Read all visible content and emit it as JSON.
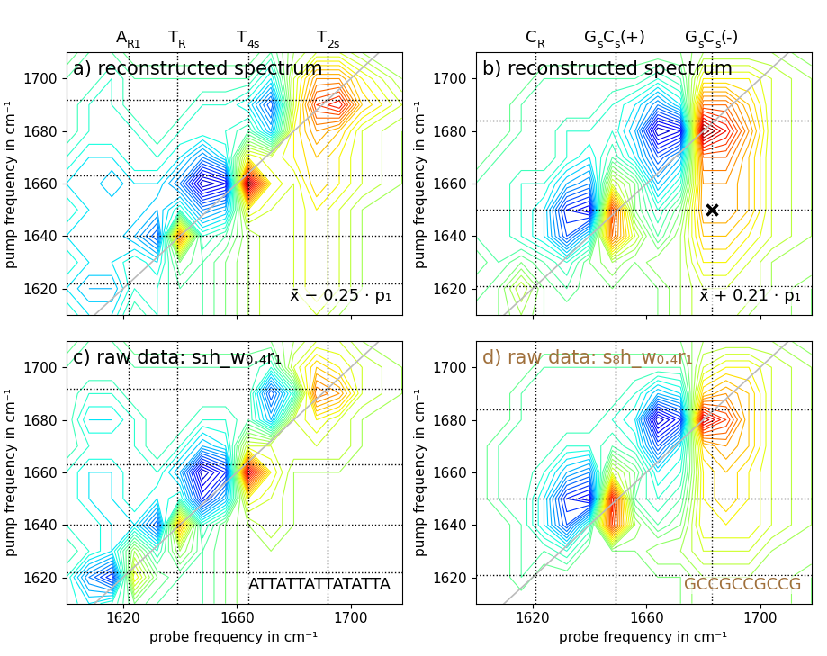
{
  "chart_data": [
    {
      "type": "contour",
      "title": "a) reconstructed spectrum",
      "annotation": "x̄ − 0.25 · p₁",
      "color": "#000000",
      "y_label": "pump frequency in cm⁻¹",
      "tick_labels": "y",
      "xlim": [
        1600,
        1718
      ],
      "ylim": [
        1610,
        1710
      ],
      "xticks": [
        1620,
        1660,
        1700
      ],
      "yticks": [
        1620,
        1640,
        1660,
        1680,
        1700
      ],
      "zlim": [
        -10,
        10
      ],
      "bands": [
        {
          "x": 1622,
          "label": [
            [
              "A",
              false
            ],
            [
              "R1",
              true
            ]
          ]
        },
        {
          "x": 1639,
          "label": [
            [
              "T",
              false
            ],
            [
              "R",
              true
            ]
          ]
        },
        {
          "x": 1664,
          "label": [
            [
              "T",
              false
            ],
            [
              "4s",
              true
            ]
          ]
        },
        {
          "x": 1692,
          "label": [
            [
              "T",
              false
            ],
            [
              "2s",
              true
            ]
          ]
        }
      ],
      "vlines": [
        1622,
        1639,
        1664,
        1692
      ],
      "hlines": [
        1622,
        1640,
        1663,
        1692
      ],
      "x": [
        1600,
        1608,
        1616,
        1624,
        1632,
        1640,
        1648,
        1656,
        1664,
        1672,
        1680,
        1688,
        1696,
        1704,
        1718
      ],
      "y": [
        1610,
        1620,
        1630,
        1640,
        1650,
        1660,
        1670,
        1680,
        1690,
        1700,
        1710
      ],
      "z": [
        [
          -2,
          -3,
          -3,
          -1,
          -2,
          -1,
          -1,
          0,
          1,
          2,
          2,
          2,
          1,
          1,
          1
        ],
        [
          -3,
          -4,
          -4,
          -2,
          -2,
          -1,
          -1,
          0,
          1,
          2,
          2,
          3,
          2,
          1,
          1
        ],
        [
          -2,
          -3,
          -3,
          -2,
          -3,
          0,
          -1,
          0,
          1,
          2,
          2,
          3,
          2,
          1,
          1
        ],
        [
          -3,
          -3,
          -3,
          -4,
          -6,
          6,
          -2,
          -1,
          1,
          2,
          2,
          3,
          2,
          1,
          1
        ],
        [
          -2,
          -3,
          -3,
          -3,
          -4,
          -2,
          -5,
          -4,
          3,
          2,
          2,
          3,
          2,
          1,
          1
        ],
        [
          -3,
          -3,
          -4,
          -3,
          -3,
          -5,
          -9,
          -8,
          10,
          3,
          2,
          4,
          3,
          2,
          1
        ],
        [
          -2,
          -3,
          -3,
          -2,
          -2,
          -3,
          -5,
          -3,
          3,
          2,
          3,
          4,
          3,
          2,
          1
        ],
        [
          -1,
          -2,
          -2,
          -2,
          -1,
          -2,
          -2,
          -2,
          -1,
          -4,
          3,
          5,
          4,
          2,
          1
        ],
        [
          -1,
          -2,
          -2,
          -1,
          -1,
          -1,
          -2,
          -2,
          -3,
          -6,
          2,
          7,
          8,
          4,
          2
        ],
        [
          -1,
          -1,
          -2,
          -1,
          -1,
          -1,
          -1,
          -1,
          -1,
          -3,
          2,
          5,
          5,
          3,
          1
        ],
        [
          0,
          -1,
          -1,
          0,
          0,
          0,
          0,
          0,
          0,
          -1,
          1,
          2,
          2,
          1,
          1
        ]
      ]
    },
    {
      "type": "contour",
      "title": "b) reconstructed spectrum",
      "annotation": "x̄ + 0.21 · p₁",
      "color": "#000000",
      "y_label": "pump frequency in cm⁻¹",
      "tick_labels": "y",
      "xlim": [
        1600,
        1718
      ],
      "ylim": [
        1610,
        1710
      ],
      "xticks": [
        1620,
        1660,
        1700
      ],
      "yticks": [
        1620,
        1640,
        1660,
        1680,
        1700
      ],
      "zlim": [
        -10,
        10
      ],
      "bands": [
        {
          "x": 1621,
          "label": [
            [
              "C",
              false
            ],
            [
              "R",
              true
            ]
          ]
        },
        {
          "x": 1649,
          "label": [
            [
              "G",
              false
            ],
            [
              "s",
              true
            ],
            [
              "C",
              false
            ],
            [
              "s",
              true
            ],
            [
              "(+)",
              false
            ]
          ]
        },
        {
          "x": 1683,
          "label": [
            [
              "G",
              false
            ],
            [
              "s",
              true
            ],
            [
              "C",
              false
            ],
            [
              "s",
              true
            ],
            [
              "(-)",
              false
            ]
          ]
        }
      ],
      "vlines": [
        1621,
        1649,
        1683
      ],
      "hlines": [
        1621,
        1650,
        1684
      ],
      "markers": [
        {
          "x": 1683,
          "y": 1650,
          "marker": "x"
        }
      ],
      "x": [
        1600,
        1608,
        1616,
        1624,
        1632,
        1640,
        1648,
        1656,
        1664,
        1672,
        1680,
        1688,
        1696,
        1704,
        1718
      ],
      "y": [
        1610,
        1620,
        1630,
        1640,
        1650,
        1660,
        1670,
        1680,
        1690,
        1700,
        1710
      ],
      "z": [
        [
          0,
          0,
          1,
          0,
          0,
          0,
          0,
          0,
          0,
          1,
          2,
          2,
          1,
          1,
          0
        ],
        [
          -1,
          0,
          2,
          0,
          -1,
          0,
          0,
          0,
          0,
          1,
          2,
          2,
          2,
          1,
          0
        ],
        [
          0,
          -1,
          0,
          -1,
          -2,
          0,
          1,
          0,
          1,
          1,
          3,
          3,
          2,
          1,
          1
        ],
        [
          -1,
          -1,
          -2,
          -3,
          -6,
          -3,
          6,
          2,
          -1,
          1,
          4,
          4,
          3,
          2,
          1
        ],
        [
          -1,
          -1,
          -2,
          -3,
          -7,
          -8,
          7,
          0,
          -2,
          0,
          5,
          5,
          4,
          2,
          1
        ],
        [
          -1,
          -1,
          -2,
          -2,
          -4,
          -5,
          2,
          0,
          -4,
          -2,
          5,
          5,
          4,
          2,
          1
        ],
        [
          0,
          -1,
          -1,
          -1,
          -2,
          -3,
          -1,
          -3,
          -6,
          -4,
          6,
          6,
          4,
          2,
          1
        ],
        [
          0,
          0,
          -1,
          -1,
          -2,
          -2,
          -2,
          -4,
          -9,
          -8,
          10,
          8,
          5,
          2,
          1
        ],
        [
          0,
          0,
          -1,
          -1,
          -1,
          -1,
          -2,
          -3,
          -5,
          -3,
          6,
          6,
          4,
          2,
          1
        ],
        [
          0,
          0,
          0,
          -1,
          -1,
          -1,
          -1,
          -1,
          -2,
          -1,
          3,
          3,
          3,
          2,
          1
        ],
        [
          0,
          0,
          0,
          0,
          0,
          0,
          0,
          0,
          0,
          0,
          1,
          1,
          1,
          1,
          0
        ]
      ]
    },
    {
      "type": "contour",
      "title": "c) raw data: s₁h_w₀.₄r₁",
      "annotation": "ATTATTATTATATTA",
      "color": "#000000",
      "x_label": "probe frequency in cm⁻¹",
      "y_label": "pump frequency in cm⁻¹",
      "xlim": [
        1600,
        1718
      ],
      "ylim": [
        1610,
        1710
      ],
      "xticks": [
        1620,
        1660,
        1700
      ],
      "yticks": [
        1620,
        1640,
        1660,
        1680,
        1700
      ],
      "zlim": [
        -10,
        10
      ],
      "vlines": [
        1622,
        1639,
        1664,
        1692
      ],
      "hlines": [
        1622,
        1640,
        1663,
        1692
      ],
      "x": [
        1600,
        1608,
        1616,
        1624,
        1632,
        1640,
        1648,
        1656,
        1664,
        1672,
        1680,
        1688,
        1696,
        1704,
        1718
      ],
      "y": [
        1610,
        1620,
        1630,
        1640,
        1650,
        1660,
        1670,
        1680,
        1690,
        1700,
        1710
      ],
      "z": [
        [
          -2,
          -3,
          -2,
          0,
          -1,
          -1,
          -1,
          0,
          1,
          1,
          1,
          1,
          1,
          1,
          1
        ],
        [
          -2,
          -5,
          -7,
          3,
          0,
          -1,
          -1,
          0,
          1,
          1,
          1,
          1,
          1,
          1,
          1
        ],
        [
          -1,
          -2,
          -3,
          1,
          -2,
          1,
          -1,
          0,
          1,
          1,
          1,
          1,
          1,
          1,
          1
        ],
        [
          -2,
          -2,
          -3,
          -3,
          -6,
          5,
          -2,
          0,
          1,
          2,
          1,
          1,
          1,
          1,
          1
        ],
        [
          -2,
          -3,
          -3,
          -2,
          -3,
          -2,
          -7,
          -4,
          3,
          2,
          1,
          1,
          1,
          1,
          1
        ],
        [
          -2,
          -3,
          -3,
          -2,
          -2,
          -4,
          -9,
          -7,
          9,
          3,
          1,
          1,
          1,
          1,
          1
        ],
        [
          -1,
          -2,
          -2,
          -2,
          -1,
          -2,
          -4,
          -3,
          2,
          2,
          2,
          2,
          2,
          1,
          1
        ],
        [
          -1,
          -3,
          -3,
          -2,
          -1,
          -1,
          -2,
          -2,
          -1,
          -4,
          2,
          3,
          2,
          1,
          1
        ],
        [
          -1,
          -2,
          -2,
          -1,
          -1,
          -1,
          -1,
          -1,
          -1,
          -6,
          -2,
          6,
          5,
          2,
          1
        ],
        [
          -1,
          -1,
          -1,
          -1,
          -1,
          -1,
          -1,
          -1,
          -1,
          -2,
          2,
          4,
          3,
          2,
          1
        ],
        [
          0,
          -1,
          -1,
          0,
          0,
          0,
          0,
          0,
          0,
          0,
          1,
          2,
          2,
          1,
          1
        ]
      ]
    },
    {
      "type": "contour",
      "title": "d) raw data: s₈h_w₀.₄r₁",
      "annotation": "GCCGCCGCCG",
      "color": "#a0703c",
      "x_label": "probe frequency in cm⁻¹",
      "y_label": "pump frequency in cm⁻¹",
      "xlim": [
        1600,
        1718
      ],
      "ylim": [
        1610,
        1710
      ],
      "xticks": [
        1620,
        1660,
        1700
      ],
      "yticks": [
        1620,
        1640,
        1660,
        1680,
        1700
      ],
      "zlim": [
        -10,
        10
      ],
      "vlines": [
        1621,
        1649,
        1683
      ],
      "hlines": [
        1621,
        1650,
        1684
      ],
      "x": [
        1600,
        1608,
        1616,
        1624,
        1632,
        1640,
        1648,
        1656,
        1664,
        1672,
        1680,
        1688,
        1696,
        1704,
        1718
      ],
      "y": [
        1610,
        1620,
        1630,
        1640,
        1650,
        1660,
        1670,
        1680,
        1690,
        1700,
        1710
      ],
      "z": [
        [
          0,
          0,
          0,
          0,
          0,
          0,
          0,
          0,
          0,
          0,
          1,
          1,
          1,
          1,
          0
        ],
        [
          0,
          0,
          -1,
          0,
          0,
          0,
          0,
          0,
          0,
          0,
          1,
          1,
          1,
          1,
          0
        ],
        [
          0,
          0,
          -1,
          -1,
          -2,
          0,
          0,
          0,
          1,
          1,
          2,
          2,
          2,
          1,
          1
        ],
        [
          0,
          0,
          -1,
          -3,
          -6,
          -2,
          7,
          1,
          -1,
          0,
          3,
          3,
          3,
          2,
          1
        ],
        [
          0,
          -1,
          -1,
          -3,
          -7,
          -8,
          8,
          -1,
          -2,
          -1,
          3,
          4,
          3,
          2,
          1
        ],
        [
          0,
          -1,
          -1,
          -2,
          -4,
          -5,
          2,
          0,
          -3,
          -2,
          3,
          4,
          3,
          2,
          1
        ],
        [
          0,
          -1,
          -1,
          -1,
          -2,
          -2,
          -1,
          -2,
          -6,
          -3,
          4,
          5,
          4,
          2,
          1
        ],
        [
          0,
          0,
          -1,
          -1,
          -1,
          -1,
          -2,
          -3,
          -9,
          -7,
          9,
          7,
          4,
          2,
          1
        ],
        [
          0,
          0,
          -1,
          -1,
          -1,
          -1,
          -1,
          -2,
          -4,
          -3,
          4,
          5,
          4,
          2,
          1
        ],
        [
          0,
          0,
          0,
          -1,
          -1,
          -1,
          -1,
          -1,
          -1,
          -1,
          2,
          3,
          3,
          2,
          1
        ],
        [
          0,
          0,
          0,
          0,
          0,
          0,
          0,
          0,
          0,
          0,
          1,
          1,
          1,
          1,
          0
        ]
      ]
    }
  ]
}
